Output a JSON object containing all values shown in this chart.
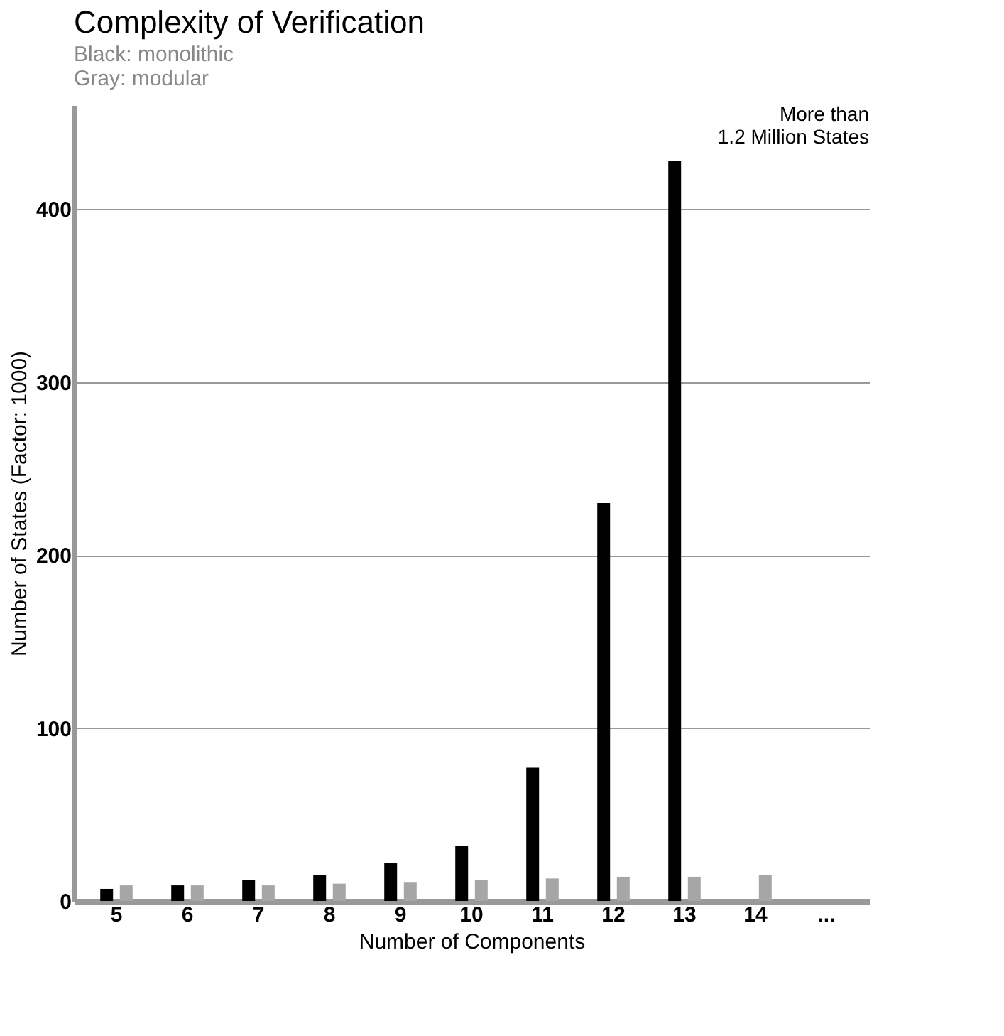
{
  "chart_data": {
    "type": "bar",
    "title": "Complexity of Verification",
    "subtitle": [
      "Black: monolithic",
      "Gray: modular"
    ],
    "xlabel": "Number of Components",
    "ylabel": "Number of States (Factor: 1000)",
    "categories": [
      "5",
      "6",
      "7",
      "8",
      "9",
      "10",
      "11",
      "12",
      "13",
      "14",
      "..."
    ],
    "series": [
      {
        "color": "#000000",
        "values": [
          7,
          9,
          12,
          15,
          22,
          32,
          77,
          230,
          428,
          null,
          null
        ]
      },
      {
        "color": "#a6a6a6",
        "values": [
          9,
          9,
          9,
          10,
          11,
          12,
          13,
          14,
          14,
          15,
          null
        ]
      }
    ],
    "ylim": [
      0,
      460
    ],
    "yticks": [
      0,
      100,
      200,
      300,
      400
    ],
    "grid": "y",
    "legend": false,
    "annotations": [
      "More than\n1.2 Million States"
    ]
  }
}
